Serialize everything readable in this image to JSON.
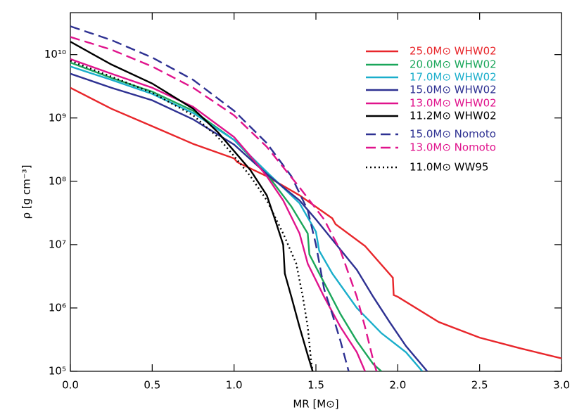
{
  "chart_data": {
    "type": "line",
    "log_y": true,
    "xlabel": "MR [M⊙]",
    "ylabel": "ρ [g cm⁻³]",
    "xlim": [
      0,
      3
    ],
    "ylim": [
      100000,
      46000000000
    ],
    "xticks": [
      {
        "value": 0,
        "label": "0.0"
      },
      0.5,
      {
        "value": 1,
        "label": "1.0"
      },
      1.5,
      {
        "value": 2,
        "label": "2.0"
      },
      2.5,
      {
        "value": 3,
        "label": "3.0"
      }
    ],
    "yticks": [
      {
        "value": 100000,
        "label": "10⁵"
      },
      {
        "value": 1000000,
        "label": "10⁶"
      },
      {
        "value": 10000000,
        "label": "10⁷"
      },
      {
        "value": 100000000,
        "label": "10⁸"
      },
      {
        "value": 1000000000,
        "label": "10⁹"
      },
      {
        "value": 10000000000,
        "label": "10¹⁰"
      }
    ],
    "legend": "top-right",
    "series": [
      {
        "name": "25.0M⊙ WHW02",
        "color": "#e8262b",
        "dash": "solid",
        "x": [
          0,
          0.25,
          0.5,
          0.75,
          1.0,
          1.02,
          1.2,
          1.4,
          1.6,
          1.62,
          1.8,
          1.97,
          1.975,
          2.0,
          2.25,
          2.5,
          2.75,
          3.0
        ],
        "values": [
          3000000000,
          1400000000,
          740000000,
          390000000,
          230000000,
          200000000,
          120000000,
          60000000,
          26000000,
          21000000,
          9500000,
          3000000,
          1600000,
          1500000,
          600000,
          340000,
          230000,
          160000
        ]
      },
      {
        "name": "20.0M⊙ WHW02",
        "color": "#1aa65a",
        "dash": "solid",
        "x": [
          0,
          0.25,
          0.5,
          0.75,
          1.0,
          1.2,
          1.35,
          1.45,
          1.46,
          1.55,
          1.65,
          1.75,
          1.85,
          1.9
        ],
        "values": [
          7500000000,
          4300000000,
          2600000000,
          1300000000,
          450000000,
          130000000,
          40000000,
          15000000,
          7000000,
          2500000,
          800000,
          300000,
          130000,
          100000
        ]
      },
      {
        "name": "17.0M⊙ WHW02",
        "color": "#1aaecb",
        "dash": "solid",
        "x": [
          0,
          0.25,
          0.5,
          0.75,
          1.0,
          1.2,
          1.4,
          1.5,
          1.52,
          1.6,
          1.75,
          1.9,
          2.05,
          2.15
        ],
        "values": [
          6500000000,
          4000000000,
          2400000000,
          1200000000,
          450000000,
          140000000,
          45000000,
          16000000,
          8000000,
          3500000,
          1000000,
          400000,
          200000,
          100000
        ]
      },
      {
        "name": "15.0M⊙ WHW02",
        "color": "#2e3192",
        "dash": "solid",
        "x": [
          0,
          0.25,
          0.5,
          0.75,
          1.0,
          1.2,
          1.4,
          1.5,
          1.6,
          1.75,
          1.85,
          1.95,
          2.05,
          2.18
        ],
        "values": [
          5000000000,
          3000000000,
          1900000000,
          950000000,
          380000000,
          130000000,
          50000000,
          25000000,
          12000000,
          4000000,
          1500000,
          600000,
          250000,
          100000
        ]
      },
      {
        "name": "13.0M⊙ WHW02",
        "color": "#e0138c",
        "dash": "solid",
        "x": [
          0,
          0.25,
          0.5,
          0.75,
          1.0,
          1.1,
          1.2,
          1.3,
          1.4,
          1.45,
          1.55,
          1.65,
          1.75,
          1.8
        ],
        "values": [
          8500000000,
          5000000000,
          3000000000,
          1500000000,
          500000000,
          250000000,
          120000000,
          50000000,
          15000000,
          5000000,
          1500000,
          500000,
          200000,
          100000
        ]
      },
      {
        "name": "11.2M⊙ WHW02",
        "color": "#000000",
        "dash": "solid",
        "x": [
          0,
          0.25,
          0.5,
          0.75,
          0.9,
          1.0,
          1.1,
          1.2,
          1.25,
          1.3,
          1.31,
          1.35,
          1.4,
          1.45,
          1.48
        ],
        "values": [
          16000000000,
          7000000000,
          3500000000,
          1400000000,
          600000000,
          300000000,
          150000000,
          60000000,
          25000000,
          10000000,
          3500000,
          1500000,
          500000,
          180000,
          100000
        ]
      },
      {
        "name": "15.0M⊙ Nomoto",
        "color": "#2e3192",
        "dash": "dashed",
        "x": [
          0,
          0.25,
          0.5,
          0.75,
          1.0,
          1.2,
          1.35,
          1.45,
          1.5,
          1.55,
          1.6,
          1.65,
          1.7
        ],
        "values": [
          28000000000,
          17000000000,
          9000000000,
          4000000000,
          1300000000,
          400000000,
          120000000,
          35000000,
          10000000,
          2000000,
          800000,
          300000,
          100000
        ]
      },
      {
        "name": "13.0M⊙ Nomoto",
        "color": "#e0138c",
        "dash": "dashed",
        "x": [
          0,
          0.25,
          0.5,
          0.75,
          1.0,
          1.2,
          1.4,
          1.55,
          1.65,
          1.75,
          1.8,
          1.85,
          1.87
        ],
        "values": [
          19000000000,
          12000000000,
          6500000000,
          3000000000,
          1100000000,
          350000000,
          80000000,
          25000000,
          8000000,
          1500000,
          500000,
          150000,
          100000
        ]
      },
      {
        "name": "11.0M⊙ WW95",
        "color": "#000000",
        "dash": "dotted",
        "x": [
          0,
          0.25,
          0.5,
          0.75,
          0.9,
          1.0,
          1.1,
          1.2,
          1.3,
          1.38,
          1.42,
          1.45,
          1.47,
          1.48
        ],
        "values": [
          8000000000,
          4500000000,
          2500000000,
          1100000000,
          500000000,
          250000000,
          120000000,
          50000000,
          15000000,
          5000000,
          1500000,
          500000,
          150000,
          100000
        ]
      }
    ]
  }
}
